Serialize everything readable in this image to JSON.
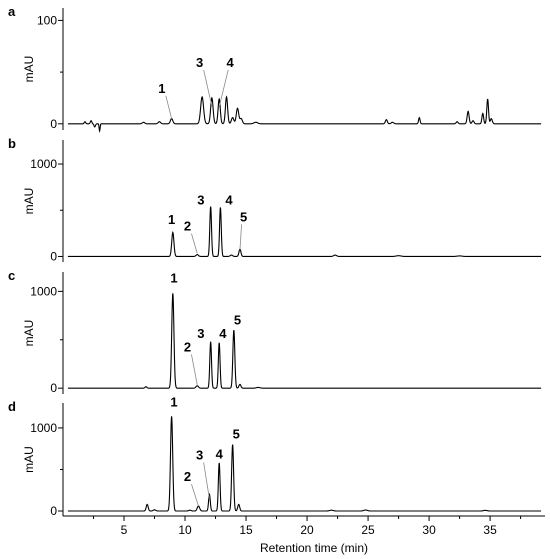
{
  "chart_data": [
    {
      "type": "line",
      "panel_label": "a",
      "ylabel": "mAU",
      "ylim": [
        -6,
        112
      ],
      "yticks": [
        0,
        100
      ],
      "baseline": 0,
      "peaks": [
        {
          "x": 1.8,
          "h": 2,
          "w": 0.06
        },
        {
          "x": 2.3,
          "h": 3,
          "w": 0.06
        },
        {
          "x": 2.6,
          "h": -3,
          "w": 0.06
        },
        {
          "x": 3.0,
          "h": -7,
          "w": 0.04
        },
        {
          "x": 6.6,
          "h": 1.5,
          "w": 0.1
        },
        {
          "x": 7.9,
          "h": 2,
          "w": 0.1
        },
        {
          "x": 8.9,
          "h": 5,
          "w": 0.1
        },
        {
          "x": 11.4,
          "h": 26,
          "w": 0.12
        },
        {
          "x": 12.2,
          "h": 25,
          "w": 0.1
        },
        {
          "x": 12.8,
          "h": 24,
          "w": 0.09
        },
        {
          "x": 13.4,
          "h": 26,
          "w": 0.09
        },
        {
          "x": 13.9,
          "h": 6,
          "w": 0.1
        },
        {
          "x": 14.3,
          "h": 15,
          "w": 0.1
        },
        {
          "x": 14.6,
          "h": 5,
          "w": 0.1
        },
        {
          "x": 15.8,
          "h": 1.5,
          "w": 0.15
        },
        {
          "x": 26.5,
          "h": 4,
          "w": 0.08
        },
        {
          "x": 27.0,
          "h": 1.5,
          "w": 0.1
        },
        {
          "x": 29.2,
          "h": 6,
          "w": 0.06
        },
        {
          "x": 32.3,
          "h": 2,
          "w": 0.08
        },
        {
          "x": 33.2,
          "h": 12,
          "w": 0.08
        },
        {
          "x": 33.6,
          "h": 3,
          "w": 0.08
        },
        {
          "x": 34.4,
          "h": 10,
          "w": 0.07
        },
        {
          "x": 34.8,
          "h": 24,
          "w": 0.07
        },
        {
          "x": 35.1,
          "h": 5,
          "w": 0.08
        }
      ],
      "peak_labels": [
        {
          "text": "1",
          "x": 8.9,
          "label_x": 8.1,
          "label_y": 30,
          "leader": true
        },
        {
          "text": "3",
          "x": 12.2,
          "label_x": 11.2,
          "label_y": 55,
          "leader": true
        },
        {
          "text": "4",
          "x": 12.8,
          "label_x": 13.7,
          "label_y": 55,
          "leader": true
        }
      ]
    },
    {
      "type": "line",
      "panel_label": "b",
      "ylabel": "mAU",
      "ylim": [
        -60,
        1260
      ],
      "yticks": [
        0,
        1000
      ],
      "baseline": 0,
      "peaks": [
        {
          "x": 9.0,
          "h": 260,
          "w": 0.09
        },
        {
          "x": 11.0,
          "h": 20,
          "w": 0.1
        },
        {
          "x": 12.1,
          "h": 540,
          "w": 0.07
        },
        {
          "x": 12.9,
          "h": 530,
          "w": 0.07
        },
        {
          "x": 14.5,
          "h": 80,
          "w": 0.08
        },
        {
          "x": 13.8,
          "h": 15,
          "w": 0.1
        },
        {
          "x": 22.3,
          "h": 15,
          "w": 0.12
        },
        {
          "x": 27.5,
          "h": 8,
          "w": 0.2
        },
        {
          "x": 32.5,
          "h": 6,
          "w": 0.2
        }
      ],
      "peak_labels": [
        {
          "text": "1",
          "x": 9.0,
          "label_x": 8.9,
          "label_y": 350,
          "leader": false
        },
        {
          "text": "2",
          "x": 11.0,
          "label_x": 10.2,
          "label_y": 280,
          "leader": true
        },
        {
          "text": "3",
          "x": 12.1,
          "label_x": 11.3,
          "label_y": 560,
          "leader": false
        },
        {
          "text": "4",
          "x": 12.9,
          "label_x": 13.6,
          "label_y": 560,
          "leader": false
        },
        {
          "text": "5",
          "x": 14.5,
          "label_x": 14.8,
          "label_y": 380,
          "leader": true
        }
      ]
    },
    {
      "type": "line",
      "panel_label": "c",
      "ylabel": "mAU",
      "ylim": [
        -60,
        1200
      ],
      "yticks": [
        0,
        1000
      ],
      "baseline": 0,
      "peaks": [
        {
          "x": 6.8,
          "h": 15,
          "w": 0.08
        },
        {
          "x": 9.0,
          "h": 980,
          "w": 0.09
        },
        {
          "x": 11.0,
          "h": 25,
          "w": 0.1
        },
        {
          "x": 12.1,
          "h": 480,
          "w": 0.07
        },
        {
          "x": 12.8,
          "h": 470,
          "w": 0.07
        },
        {
          "x": 14.0,
          "h": 600,
          "w": 0.08
        },
        {
          "x": 14.5,
          "h": 40,
          "w": 0.08
        },
        {
          "x": 16.0,
          "h": 8,
          "w": 0.15
        }
      ],
      "peak_labels": [
        {
          "text": "1",
          "x": 9.0,
          "label_x": 9.1,
          "label_y": 1090,
          "leader": false
        },
        {
          "text": "2",
          "x": 11.0,
          "label_x": 10.2,
          "label_y": 380,
          "leader": true
        },
        {
          "text": "3",
          "x": 12.1,
          "label_x": 11.3,
          "label_y": 520,
          "leader": false
        },
        {
          "text": "4",
          "x": 12.8,
          "label_x": 13.1,
          "label_y": 520,
          "leader": false
        },
        {
          "text": "5",
          "x": 14.0,
          "label_x": 14.3,
          "label_y": 660,
          "leader": false
        }
      ]
    },
    {
      "type": "line",
      "panel_label": "d",
      "ylabel": "mAU",
      "ylim": [
        -60,
        1300
      ],
      "yticks": [
        0,
        1000
      ],
      "baseline": 0,
      "peaks": [
        {
          "x": 6.9,
          "h": 80,
          "w": 0.08
        },
        {
          "x": 7.5,
          "h": 15,
          "w": 0.1
        },
        {
          "x": 8.9,
          "h": 1140,
          "w": 0.09
        },
        {
          "x": 10.4,
          "h": 10,
          "w": 0.1
        },
        {
          "x": 11.1,
          "h": 60,
          "w": 0.1
        },
        {
          "x": 12.0,
          "h": 200,
          "w": 0.07
        },
        {
          "x": 12.8,
          "h": 580,
          "w": 0.07
        },
        {
          "x": 13.9,
          "h": 800,
          "w": 0.08
        },
        {
          "x": 14.4,
          "h": 80,
          "w": 0.08
        },
        {
          "x": 22.0,
          "h": 10,
          "w": 0.15
        },
        {
          "x": 24.8,
          "h": 12,
          "w": 0.15
        },
        {
          "x": 34.6,
          "h": 8,
          "w": 0.15
        }
      ],
      "peak_labels": [
        {
          "text": "1",
          "x": 8.9,
          "label_x": 9.1,
          "label_y": 1260,
          "leader": false
        },
        {
          "text": "2",
          "x": 11.1,
          "label_x": 10.2,
          "label_y": 360,
          "leader": true
        },
        {
          "text": "3",
          "x": 12.0,
          "label_x": 11.2,
          "label_y": 620,
          "leader": true
        },
        {
          "text": "4",
          "x": 12.8,
          "label_x": 12.8,
          "label_y": 630,
          "leader": false
        },
        {
          "text": "5",
          "x": 13.9,
          "label_x": 14.2,
          "label_y": 870,
          "leader": false
        }
      ]
    }
  ],
  "x_axis": {
    "label": "Retention time (min)",
    "xlim": [
      0,
      39.5
    ],
    "ticks": [
      5,
      10,
      15,
      20,
      25,
      30,
      35
    ]
  }
}
